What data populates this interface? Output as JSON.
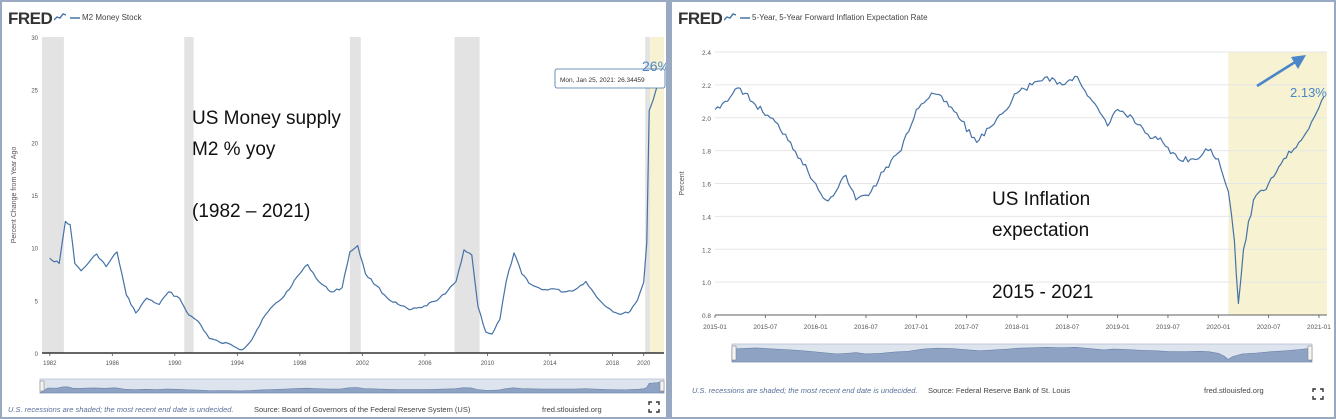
{
  "brand": "FRED",
  "colors": {
    "line": "#4572a7",
    "recession": "#e3e3e3",
    "highlight": "#f6f2d2",
    "annotation_blue": "#4a86c8",
    "frame": "#9aa9c2"
  },
  "icons": {
    "fred_logo": "fred-chart-icon",
    "fullscreen": "fullscreen-icon"
  },
  "left_panel": {
    "series_title": "M2 Money Stock",
    "ylabel": "Percent Change from Year Ago",
    "tooltip": "Mon, Jan 25, 2021: 26.34459",
    "callout": "26%",
    "annotation_lines": [
      "US Money supply",
      "M2 % yoy",
      "",
      "(1982 – 2021)"
    ],
    "footer_left": "U.S. recessions are shaded; the most recent end date is undecided.",
    "footer_source": "Source: Board of Governors of the Federal Reserve System (US)",
    "footer_url": "fred.stlouisfed.org"
  },
  "right_panel": {
    "series_title": "5-Year, 5-Year Forward Inflation Expectation Rate",
    "ylabel": "Percent",
    "callout": "2.13%",
    "annotation_lines": [
      "US Inflation",
      "expectation",
      "",
      "2015 - 2021"
    ],
    "footer_left": "U.S. recessions are shaded; the most recent end date is undecided.",
    "footer_source": "Source: Federal Reserve Bank of St. Louis",
    "footer_url": "fred.stlouisfed.org"
  },
  "chart_data": [
    {
      "type": "line",
      "title": "M2 Money Stock",
      "ylabel": "Percent Change from Year Ago",
      "ylim": [
        0,
        30
      ],
      "yticks": [
        0,
        5,
        10,
        15,
        20,
        25,
        30
      ],
      "xlim": [
        1981.5,
        2021.3
      ],
      "xtick_values": [
        1982,
        1986,
        1990,
        1994,
        1998,
        2002,
        2006,
        2010,
        2014,
        2018,
        2020
      ],
      "xticks": [
        "1982",
        "1986",
        "1990",
        "1994",
        "1998",
        "2002",
        "2006",
        "2010",
        "2014",
        "2018",
        "2020"
      ],
      "recessions": [
        [
          1981.5,
          1982.9
        ],
        [
          1990.6,
          1991.2
        ],
        [
          2001.2,
          2001.9
        ],
        [
          2007.9,
          2009.5
        ],
        [
          2020.1,
          2020.4
        ]
      ],
      "highlight": [
        2020.1,
        2021.3
      ],
      "x": [
        1982.0,
        1982.6,
        1983.0,
        1983.3,
        1983.6,
        1984.0,
        1984.5,
        1985.0,
        1985.6,
        1986.3,
        1986.9,
        1987.5,
        1988.2,
        1989.0,
        1989.6,
        1990.3,
        1990.9,
        1991.5,
        1992.2,
        1992.9,
        1993.6,
        1994.3,
        1994.9,
        1995.6,
        1996.3,
        1997.0,
        1997.8,
        1998.5,
        1999.2,
        2000.0,
        2000.7,
        2001.2,
        2001.7,
        2002.2,
        2002.9,
        2003.6,
        2004.3,
        2005.0,
        2005.8,
        2006.6,
        2007.3,
        2008.0,
        2008.5,
        2009.0,
        2009.4,
        2009.9,
        2010.3,
        2010.8,
        2011.2,
        2011.7,
        2012.2,
        2012.8,
        2013.5,
        2014.2,
        2014.9,
        2015.6,
        2016.3,
        2017.0,
        2017.7,
        2018.4,
        2019.0,
        2019.6,
        2020.0,
        2020.2,
        2020.35,
        2020.6,
        2020.9,
        2021.07
      ],
      "y": [
        9.0,
        8.5,
        12.5,
        12.2,
        8.5,
        7.8,
        8.6,
        9.4,
        8.2,
        9.6,
        5.5,
        3.8,
        5.2,
        4.6,
        5.8,
        5.2,
        3.6,
        3.0,
        1.4,
        1.0,
        0.8,
        0.3,
        1.2,
        3.2,
        4.5,
        5.4,
        7.2,
        8.4,
        6.8,
        5.8,
        6.2,
        9.6,
        10.2,
        7.5,
        6.4,
        5.2,
        4.6,
        4.1,
        4.3,
        4.9,
        5.6,
        6.8,
        9.8,
        9.3,
        4.4,
        2.0,
        1.8,
        3.2,
        6.8,
        9.5,
        7.5,
        6.5,
        6.0,
        6.1,
        5.8,
        6.0,
        6.8,
        5.3,
        4.3,
        3.7,
        3.8,
        5.0,
        6.7,
        10.5,
        23.0,
        24.0,
        25.5,
        26.34
      ]
    },
    {
      "type": "line",
      "title": "5-Year, 5-Year Forward Inflation Expectation Rate",
      "ylabel": "Percent",
      "ylim": [
        0.8,
        2.4
      ],
      "yticks": [
        0.8,
        1.0,
        1.2,
        1.4,
        1.6,
        1.8,
        2.0,
        2.2,
        2.4
      ],
      "xlim": [
        2015.0,
        2021.08
      ],
      "xtick_values": [
        2015.0,
        2015.5,
        2016.0,
        2016.5,
        2017.0,
        2017.5,
        2018.0,
        2018.5,
        2019.0,
        2019.5,
        2020.0,
        2020.5,
        2021.0
      ],
      "xticks": [
        "2015-01",
        "2015-07",
        "2016-01",
        "2016-07",
        "2017-01",
        "2017-07",
        "2018-01",
        "2018-07",
        "2019-01",
        "2019-07",
        "2020-01",
        "2020-07",
        "2021-01"
      ],
      "highlight": [
        2020.1,
        2021.08
      ],
      "x": [
        2015.0,
        2015.1,
        2015.25,
        2015.4,
        2015.55,
        2015.7,
        2015.85,
        2016.0,
        2016.1,
        2016.2,
        2016.3,
        2016.4,
        2016.55,
        2016.7,
        2016.85,
        2017.0,
        2017.15,
        2017.3,
        2017.45,
        2017.6,
        2017.75,
        2017.9,
        2018.0,
        2018.15,
        2018.3,
        2018.45,
        2018.6,
        2018.75,
        2018.9,
        2019.0,
        2019.15,
        2019.3,
        2019.45,
        2019.6,
        2019.75,
        2019.9,
        2020.0,
        2020.1,
        2020.16,
        2020.2,
        2020.25,
        2020.35,
        2020.5,
        2020.65,
        2020.8,
        2020.95,
        2021.05
      ],
      "y": [
        2.05,
        2.1,
        2.18,
        2.08,
        2.0,
        1.9,
        1.75,
        1.6,
        1.5,
        1.55,
        1.65,
        1.5,
        1.55,
        1.7,
        1.8,
        2.05,
        2.15,
        2.1,
        1.98,
        1.85,
        1.95,
        2.05,
        2.15,
        2.2,
        2.25,
        2.2,
        2.25,
        2.1,
        1.95,
        2.05,
        2.0,
        1.9,
        1.85,
        1.75,
        1.75,
        1.8,
        1.75,
        1.55,
        1.25,
        0.87,
        1.2,
        1.5,
        1.6,
        1.75,
        1.85,
        2.0,
        2.13
      ]
    }
  ]
}
